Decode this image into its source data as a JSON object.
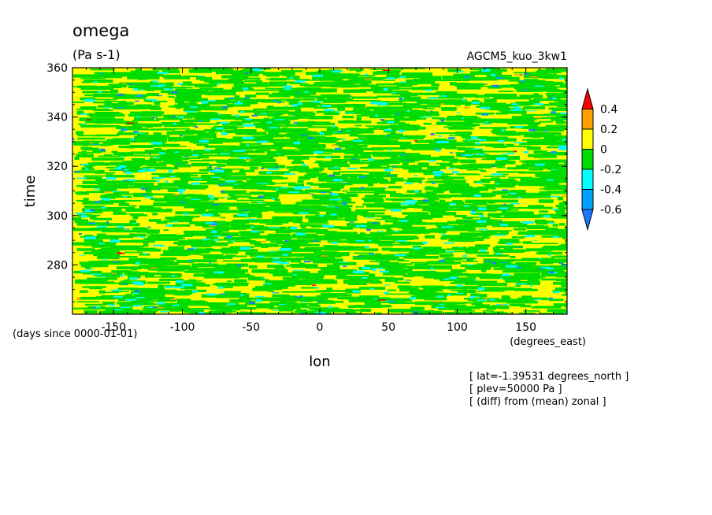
{
  "chart_data": {
    "type": "heatmap",
    "title": "omega",
    "units": "(Pa s-1)",
    "model_label": "AGCM5_kuo_3kw1",
    "xlabel": "lon",
    "x_units": "(degrees_east)",
    "ylabel": "time",
    "y_units": "(days since 0000-01-01)",
    "xlim": [
      -180,
      180
    ],
    "ylim": [
      260,
      360
    ],
    "x_ticks": [
      {
        "value": -150,
        "label": "-150"
      },
      {
        "value": -100,
        "label": "-100"
      },
      {
        "value": -50,
        "label": "-50"
      },
      {
        "value": 0,
        "label": "0"
      },
      {
        "value": 50,
        "label": "50"
      },
      {
        "value": 100,
        "label": "100"
      },
      {
        "value": 150,
        "label": "150"
      }
    ],
    "y_ticks": [
      {
        "value": 280,
        "label": "280"
      },
      {
        "value": 300,
        "label": "300"
      },
      {
        "value": 320,
        "label": "320"
      },
      {
        "value": 340,
        "label": "340"
      },
      {
        "value": 360,
        "label": "360"
      }
    ],
    "colorbar": {
      "levels": [
        -0.6,
        -0.4,
        -0.2,
        0,
        0.2,
        0.4
      ],
      "labels": [
        "-0.6",
        "-0.4",
        "-0.2",
        "0",
        "0.2",
        "0.4"
      ],
      "colors": [
        "#1e78ff",
        "#00a0ff",
        "#00ffff",
        "#00dc00",
        "#ffff00",
        "#ffa000",
        "#ff0000"
      ]
    },
    "notes": [
      "[ lat=-1.39531 degrees_north ]",
      "[ plev=50000 Pa ]",
      "[ (diff) from (mean) zonal ]"
    ]
  }
}
